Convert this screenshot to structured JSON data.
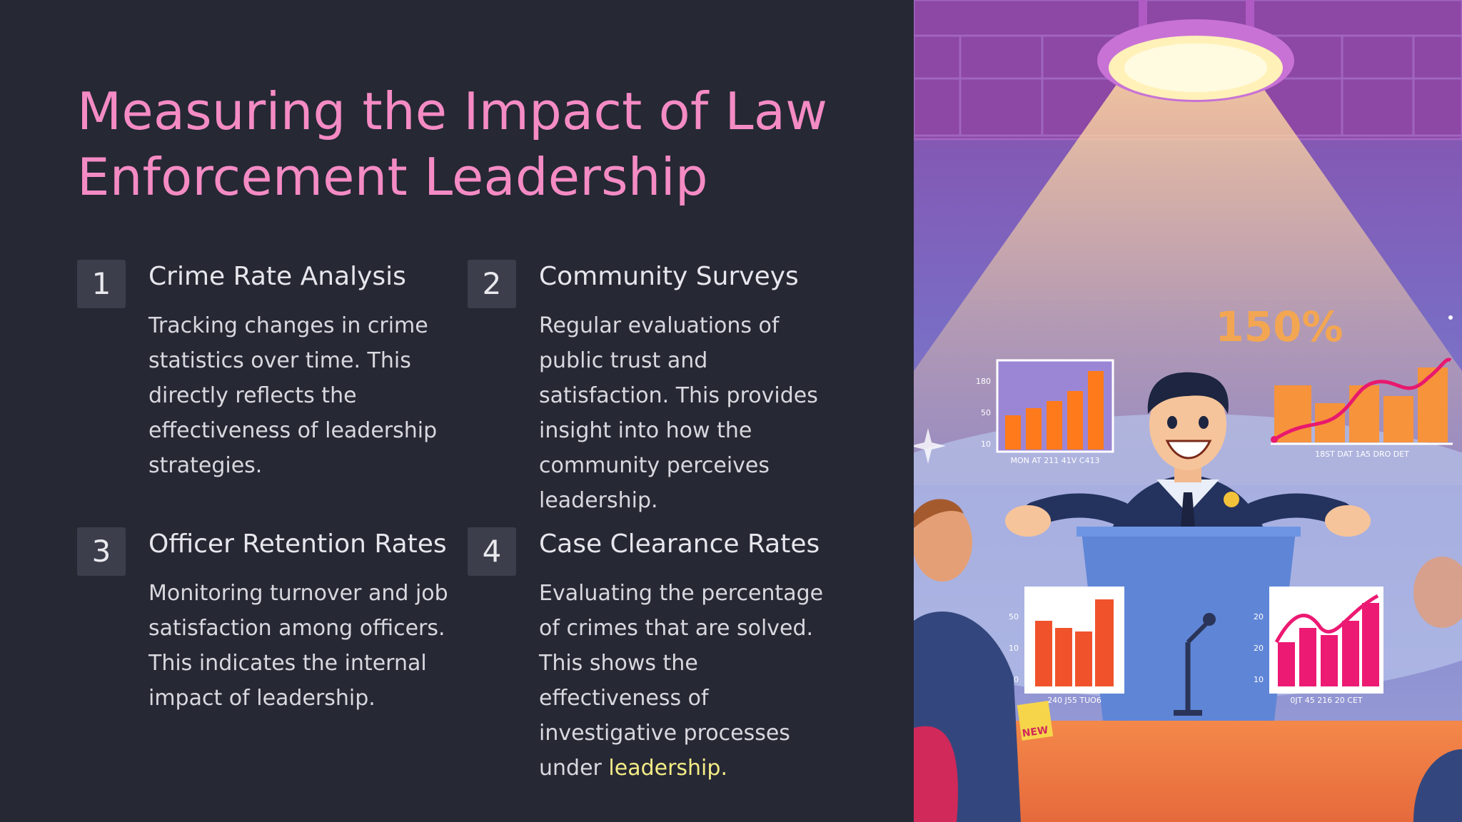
{
  "slide": {
    "title": "Measuring the Impact of Law Enforcement Leadership"
  },
  "items": [
    {
      "number": "1",
      "title": "Crime Rate Analysis",
      "description": "Tracking changes in crime statistics over time. This directly reflects the effectiveness of leadership strategies."
    },
    {
      "number": "2",
      "title": "Community Surveys",
      "description": "Regular evaluations of public trust and satisfaction. This provides insight into how the community perceives leadership."
    },
    {
      "number": "3",
      "title": "Officer Retention Rates",
      "description": "Monitoring turnover and job satisfaction among officers. This indicates the internal impact of leadership."
    },
    {
      "number": "4",
      "title": "Case Clearance Rates",
      "description_prefix": "Evaluating the percentage of crimes that are solved. This shows the effectiveness of investigative processes under ",
      "description_highlight": "leadership."
    }
  ],
  "illustration": {
    "big_stat": "150%",
    "badge_text": "NEW",
    "chart_left_ticks": [
      "180",
      "50",
      "10"
    ],
    "chart_left_labels": "MON AT 211 41V C413",
    "chart_right_labels": "18ST DAT 1A5 DRO DET",
    "chart_bl_ticks": [
      "50",
      "10",
      "20"
    ],
    "chart_bl_labels": "240 J55 TUO6",
    "chart_br_ticks": [
      "20",
      "20",
      "10"
    ],
    "chart_br_labels": "0JT 45 216 20 CET",
    "colors": {
      "title": "#f58bc4",
      "highlight": "#f4ec86",
      "background": "#262834",
      "number_box": "#3c3f4b"
    }
  }
}
